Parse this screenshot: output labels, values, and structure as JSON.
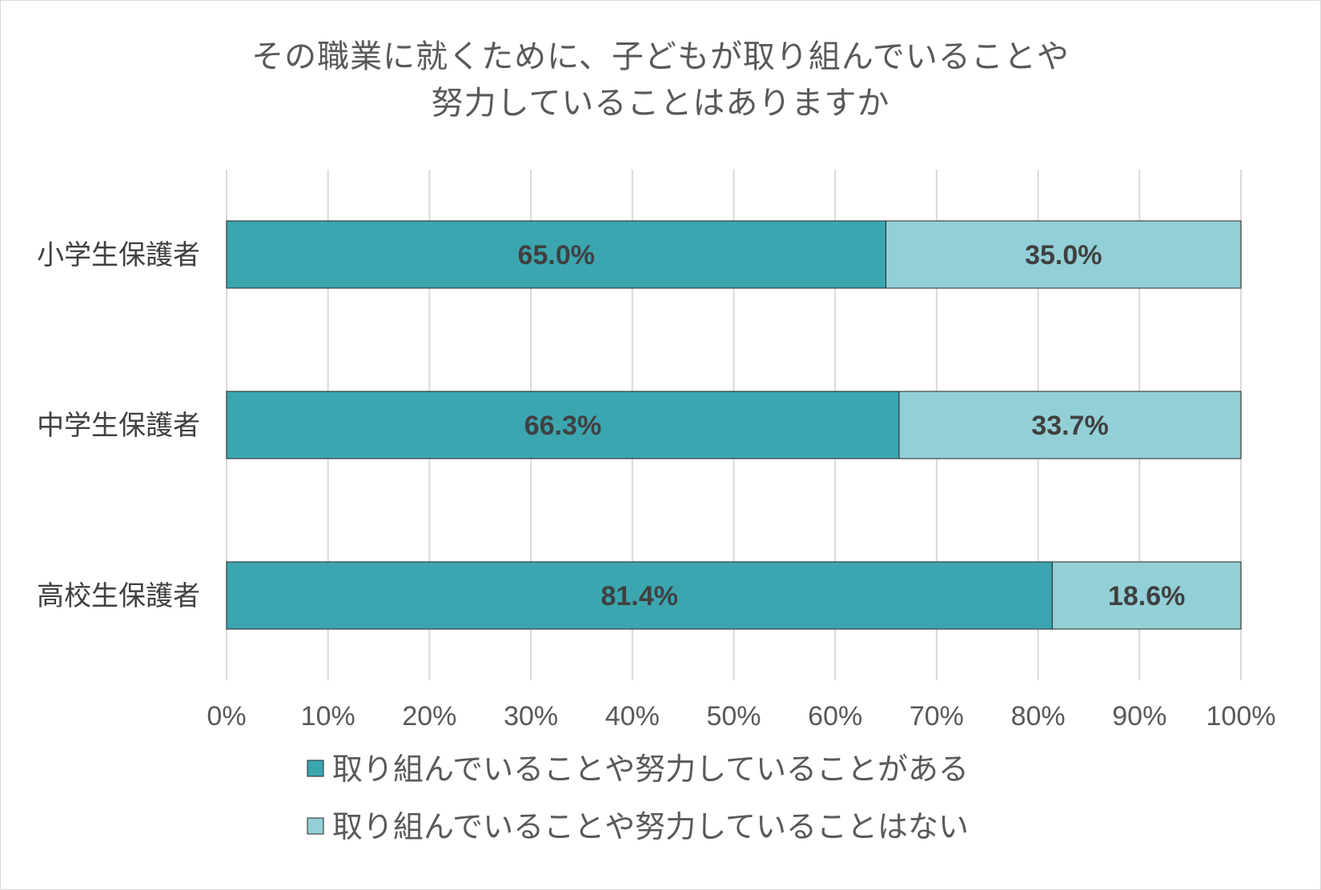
{
  "chart_data": {
    "type": "bar",
    "orientation": "horizontal",
    "stacked": true,
    "title_lines": [
      "その職業に就くために、子どもが取り組んでいることや",
      "努力していることはありますか"
    ],
    "categories": [
      "小学生保護者",
      "中学生保護者",
      "高校生保護者"
    ],
    "series": [
      {
        "name": "取り組んでいることや努力していることがある",
        "color": "#3ba6b0",
        "values": [
          65.0,
          66.3,
          81.4
        ],
        "labels": [
          "65.0%",
          "66.3%",
          "81.4%"
        ]
      },
      {
        "name": "取り組んでいることや努力していることはない",
        "color": "#93cfd7",
        "values": [
          35.0,
          33.7,
          18.6
        ],
        "labels": [
          "35.0%",
          "33.7%",
          "18.6%"
        ]
      }
    ],
    "xlim": [
      0,
      100
    ],
    "x_ticks": [
      "0%",
      "10%",
      "20%",
      "30%",
      "40%",
      "50%",
      "60%",
      "70%",
      "80%",
      "90%",
      "100%"
    ],
    "grid": true,
    "legend_position": "bottom"
  }
}
